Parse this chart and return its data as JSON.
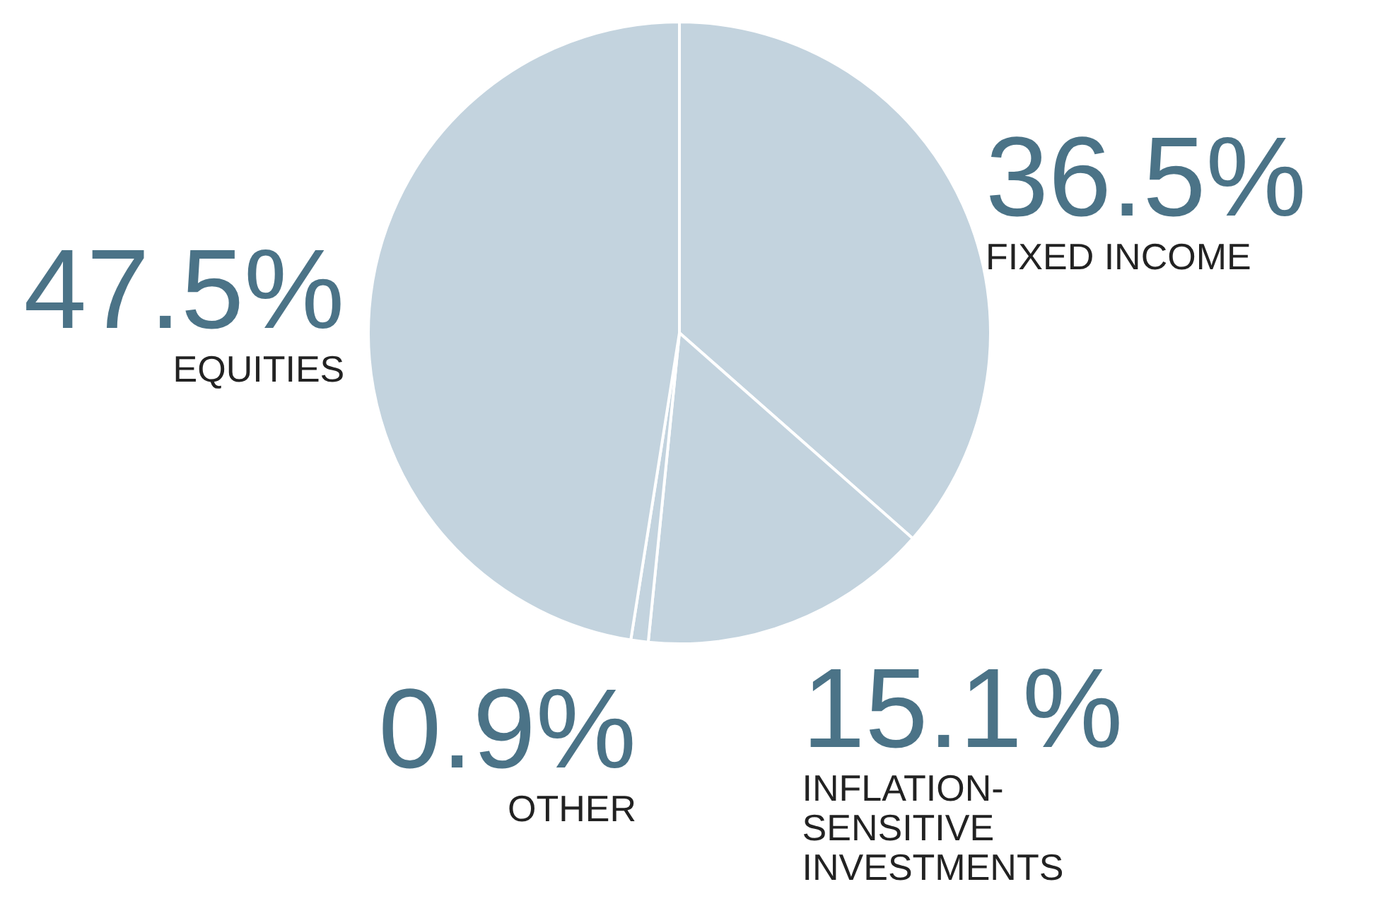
{
  "chart_data": {
    "type": "pie",
    "categories": [
      "FIXED INCOME",
      "INFLATION-SENSITIVE INVESTMENTS",
      "OTHER",
      "EQUITIES"
    ],
    "values": [
      36.5,
      15.1,
      0.9,
      47.5
    ],
    "colors": [
      "#c3d3de",
      "#c3d3de",
      "#c3d3de",
      "#c3d3de"
    ],
    "value_labels": [
      "36.5%",
      "15.1%",
      "0.9%",
      "47.5%"
    ]
  }
}
